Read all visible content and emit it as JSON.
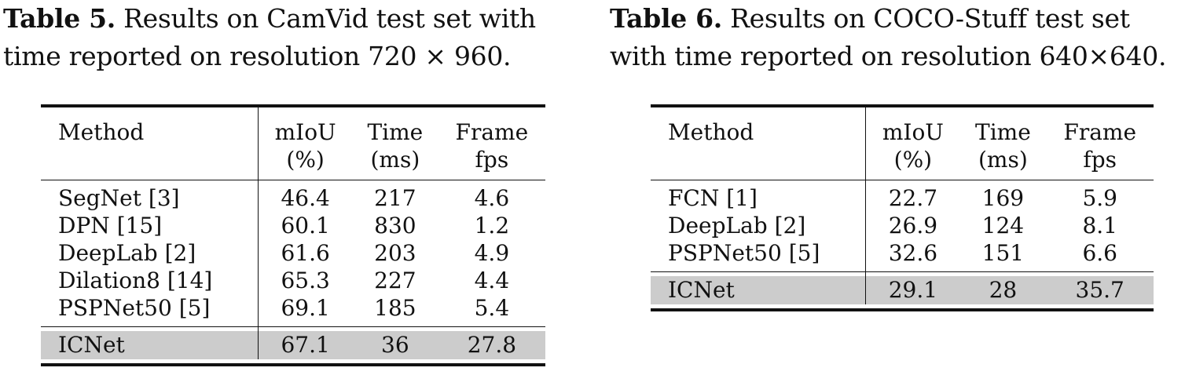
{
  "table5": {
    "caption_label": "Table 5.",
    "caption_line1": " Results on CamVid test set with",
    "caption_line2": "time reported on resolution 720 × 960.",
    "header": {
      "method": "Method",
      "col1_line1": "mIoU",
      "col1_line2": "(%)",
      "col2_line1": "Time",
      "col2_line2": "(ms)",
      "col3_line1": "Frame",
      "col3_line2": "fps"
    },
    "rows": [
      {
        "method": "SegNet [3]",
        "miou": "46.4",
        "time": "217",
        "fps": "4.6"
      },
      {
        "method": "DPN [15]",
        "miou": "60.1",
        "time": "830",
        "fps": "1.2"
      },
      {
        "method": "DeepLab [2]",
        "miou": "61.6",
        "time": "203",
        "fps": "4.9"
      },
      {
        "method": "Dilation8 [14]",
        "miou": "65.3",
        "time": "227",
        "fps": "4.4"
      },
      {
        "method": "PSPNet50 [5]",
        "miou": "69.1",
        "time": "185",
        "fps": "5.4"
      }
    ],
    "highlight": {
      "method": "ICNet",
      "miou": "67.1",
      "time": "36",
      "fps": "27.8"
    }
  },
  "table6": {
    "caption_label": "Table 6.",
    "caption_line1": " Results on COCO-Stuff test set",
    "caption_line2": "with time reported on resolution 640×640.",
    "header": {
      "method": "Method",
      "col1_line1": "mIoU",
      "col1_line2": "(%)",
      "col2_line1": "Time",
      "col2_line2": "(ms)",
      "col3_line1": "Frame",
      "col3_line2": "fps"
    },
    "rows": [
      {
        "method": "FCN [1]",
        "miou": "22.7",
        "time": "169",
        "fps": "5.9"
      },
      {
        "method": "DeepLab [2]",
        "miou": "26.9",
        "time": "124",
        "fps": "8.1"
      },
      {
        "method": "PSPNet50 [5]",
        "miou": "32.6",
        "time": "151",
        "fps": "6.6"
      }
    ],
    "highlight": {
      "method": "ICNet",
      "miou": "29.1",
      "time": "28",
      "fps": "35.7"
    }
  }
}
